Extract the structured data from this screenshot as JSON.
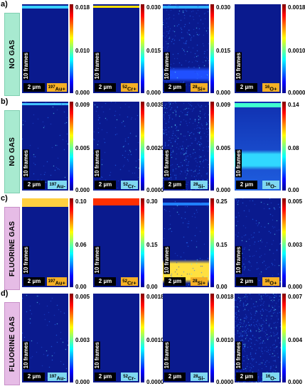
{
  "rows": [
    {
      "letter": "a)",
      "gas": "NO GAS",
      "gas_type": "no-gas",
      "panels": [
        {
          "ion": "197Au+",
          "ion_mass": "197",
          "ion_sym": "Au+",
          "polarity": "pos",
          "frames": "10 frames",
          "scale": "2 µm",
          "ticks": [
            "0.018",
            "0.010",
            "0.000"
          ]
        },
        {
          "ion": "52Cr+",
          "ion_mass": "52",
          "ion_sym": "Cr+",
          "polarity": "pos",
          "frames": "10 frames",
          "scale": "2 µm",
          "ticks": [
            "0.030",
            "0.015",
            "0.000"
          ]
        },
        {
          "ion": "28Si+",
          "ion_mass": "28",
          "ion_sym": "Si+",
          "polarity": "pos",
          "frames": "10 frames",
          "scale": "2 µm",
          "ticks": [
            "0.030",
            "0.015",
            "0.000"
          ]
        },
        {
          "ion": "16O+",
          "ion_mass": "16",
          "ion_sym": "O+",
          "polarity": "pos",
          "frames": "10 frames",
          "scale": "2 µm",
          "ticks": [
            "0.0018",
            "0.0010",
            "0.0000"
          ]
        }
      ]
    },
    {
      "letter": "b)",
      "gas": "NO GAS",
      "gas_type": "no-gas",
      "panels": [
        {
          "ion": "197Au-",
          "ion_mass": "197",
          "ion_sym": "Au-",
          "polarity": "neg",
          "frames": "10 frames",
          "scale": "2 µm",
          "ticks": [
            "0.009",
            "0.005",
            "0.000"
          ]
        },
        {
          "ion": "52Cr-",
          "ion_mass": "52",
          "ion_sym": "Cr-",
          "polarity": "neg",
          "frames": "10 frames",
          "scale": "2 µm",
          "ticks": [
            "0.0035",
            "0.0020",
            "0.0000"
          ]
        },
        {
          "ion": "28Si-",
          "ion_mass": "28",
          "ion_sym": "Si-",
          "polarity": "neg",
          "frames": "10 frames",
          "scale": "2 µm",
          "ticks": [
            "0.009",
            "0.005",
            "0.000"
          ]
        },
        {
          "ion": "16O-",
          "ion_mass": "16",
          "ion_sym": "O-",
          "polarity": "neg",
          "frames": "10 frames",
          "scale": "2 µm",
          "ticks": [
            "0.14",
            "0.08",
            "0.00"
          ]
        }
      ]
    },
    {
      "letter": "c)",
      "gas": "FLUORINE GAS",
      "gas_type": "fluorine",
      "panels": [
        {
          "ion": "197Au+",
          "ion_mass": "197",
          "ion_sym": "Au+",
          "polarity": "pos",
          "frames": "10 frames",
          "scale": "2 µm",
          "ticks": [
            "0.10",
            "0.06",
            "0.00"
          ]
        },
        {
          "ion": "52Cr+",
          "ion_mass": "52",
          "ion_sym": "Cr+",
          "polarity": "pos",
          "frames": "10 frames",
          "scale": "2 µm",
          "ticks": [
            "0.30",
            "0.15",
            "0.00"
          ]
        },
        {
          "ion": "28Si+",
          "ion_mass": "28",
          "ion_sym": "Si+",
          "polarity": "pos",
          "frames": "10 frames",
          "scale": "2 µm",
          "ticks": [
            "0.25",
            "0.15",
            "0.00"
          ]
        },
        {
          "ion": "16O+",
          "ion_mass": "16",
          "ion_sym": "O+",
          "polarity": "pos",
          "frames": "10 frames",
          "scale": "2 µm",
          "ticks": [
            "0.005",
            "0.003",
            "0.000"
          ]
        }
      ]
    },
    {
      "letter": "d)",
      "gas": "FLUORINE GAS",
      "gas_type": "fluorine",
      "panels": [
        {
          "ion": "197Au-",
          "ion_mass": "197",
          "ion_sym": "Au-",
          "polarity": "neg",
          "frames": "10 frames",
          "scale": "2 µm",
          "ticks": [
            "0.005",
            "0.003",
            "0.000"
          ]
        },
        {
          "ion": "52Cr-",
          "ion_mass": "52",
          "ion_sym": "Cr-",
          "polarity": "neg",
          "frames": "10 frames",
          "scale": "2 µm",
          "ticks": [
            "0.0018",
            "0.0010",
            "0.0000"
          ]
        },
        {
          "ion": "28Si-",
          "ion_mass": "28",
          "ion_sym": "Si-",
          "polarity": "neg",
          "frames": "10 frames",
          "scale": "2 µm",
          "ticks": [
            "0.0018",
            "0.0010",
            "0.0000"
          ]
        },
        {
          "ion": "16O-",
          "ion_mass": "16",
          "ion_sym": "O-",
          "polarity": "neg",
          "frames": "10 frames",
          "scale": "2 µm",
          "ticks": [
            "0.007",
            "0.004",
            "0.000"
          ]
        }
      ]
    }
  ],
  "colors": {
    "no_gas_label_bg": "#a8ead0",
    "fluorine_label_bg": "#e6bce6",
    "positive_ion_badge": "#f5b025",
    "negative_ion_badge": "#7fd8f0",
    "map_background": "#0a1a8e"
  },
  "colormap": "jet"
}
